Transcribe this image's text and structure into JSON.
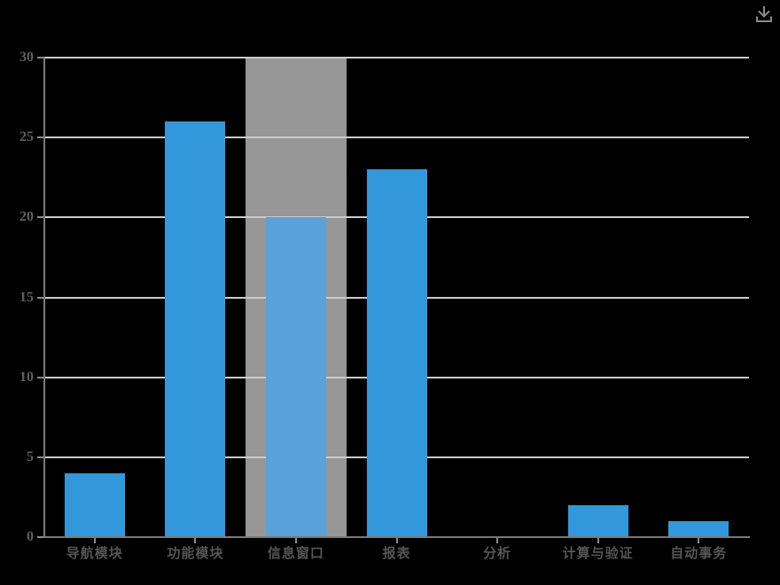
{
  "page": {
    "background": "#000000"
  },
  "toolbar": {
    "download_icon": "download"
  },
  "chart_data": {
    "type": "bar",
    "title": "",
    "xlabel": "",
    "ylabel": "",
    "categories": [
      "导航模块",
      "功能模块",
      "信息窗口",
      "报表",
      "分析",
      "计算与验证",
      "自动事务"
    ],
    "values": [
      4,
      26,
      20,
      23,
      0,
      2,
      1
    ],
    "highlighted_category_index": 2,
    "highlight_style": "full-height gray band behind the 信息窗口 bar (axis-pointer shadow)",
    "ylim": [
      0,
      30
    ],
    "y_ticks": [
      0,
      5,
      10,
      15,
      20,
      25,
      30
    ],
    "grid": true,
    "legend": false,
    "colors": {
      "background": "#000000",
      "bar": "#3398DB",
      "bar_highlighted": "#59A1D8",
      "highlight_band": "#969696",
      "gridline": "#CBCBCB",
      "axis_line": "#7A7A7A",
      "tick_mark": "#8C8C8C",
      "y_tick_label": "#5F5F5F",
      "x_tick_label": "#555555",
      "download_icon": "#8A8A8A"
    }
  }
}
